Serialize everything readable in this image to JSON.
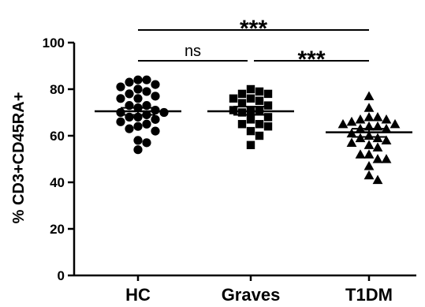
{
  "chart_data": {
    "type": "scatter",
    "ylabel": "% CD3+CD45RA+",
    "ylim": [
      0,
      100
    ],
    "yticks": [
      0,
      20,
      40,
      60,
      80,
      100
    ],
    "grid": false,
    "categories": [
      "HC",
      "Graves",
      "T1DM"
    ],
    "groups": [
      {
        "category": "HC",
        "marker": "circle",
        "mean": 70.5,
        "sem": [
          69,
          72
        ],
        "values": [
          83,
          82,
          84,
          84,
          78,
          79,
          80,
          81,
          76,
          76,
          77,
          73,
          73,
          72,
          70,
          70,
          69,
          71,
          68,
          68,
          67,
          66,
          65,
          64,
          63,
          62,
          58,
          57,
          54
        ]
      },
      {
        "category": "Graves",
        "marker": "square",
        "mean": 70.5,
        "sem": [
          69,
          72.5
        ],
        "values": [
          80,
          79,
          78,
          78,
          76,
          76,
          75,
          74,
          73,
          71,
          71,
          71,
          70,
          68,
          67,
          65,
          65,
          64,
          62,
          60,
          56
        ]
      },
      {
        "category": "T1DM",
        "marker": "triangle",
        "mean": 61.5,
        "sem": [
          59.5,
          63
        ],
        "values": [
          77,
          72,
          68,
          68,
          67,
          67,
          66,
          65,
          65,
          64,
          64,
          63,
          63,
          61,
          60,
          59,
          59,
          58,
          57,
          56,
          55,
          52,
          52,
          50,
          50,
          47,
          41,
          43
        ]
      }
    ],
    "comparisons": [
      {
        "from": "HC",
        "to": "T1DM",
        "label": "***"
      },
      {
        "from": "HC",
        "to": "Graves",
        "label": "ns"
      },
      {
        "from": "Graves",
        "to": "T1DM",
        "label": "***"
      }
    ]
  }
}
